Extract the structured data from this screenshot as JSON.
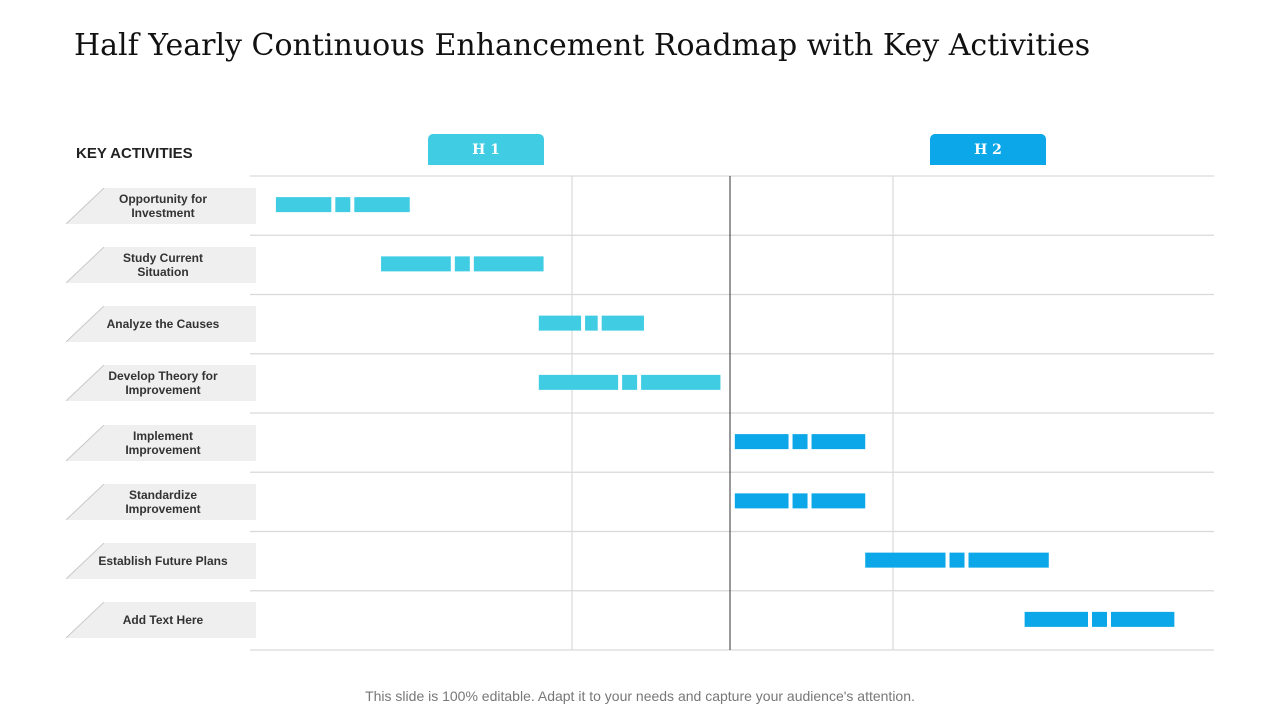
{
  "title": "Half Yearly Continuous Enhancement Roadmap with Key Activities",
  "key_activities_heading": "KEY ACTIVITIES",
  "halves": [
    {
      "label": "H 1",
      "color": "#40CCE3"
    },
    {
      "label": "H 2",
      "color": "#0BA7E8"
    }
  ],
  "activities": [
    "Opportunity for Investment",
    "Study Current Situation",
    "Analyze the Causes",
    "Develop Theory for Improvement",
    "Implement Improvement",
    "Standardize Improvement",
    "Establish Future Plans",
    "Add Text Here"
  ],
  "footer": "This slide is 100% editable. Adapt it to your needs and capture your audience's attention.",
  "chart_data": {
    "type": "gantt",
    "periods": [
      "H 1",
      "H 2"
    ],
    "unit": "half-year fraction (0 = start of H 1, 1 = end of H 1 / start of H 2, 2 = end of H 2)",
    "tasks": [
      {
        "activity": "Opportunity for Investment",
        "start": 0.05,
        "end": 0.33,
        "color": "#40CCE3"
      },
      {
        "activity": "Study Current Situation",
        "start": 0.27,
        "end": 0.61,
        "color": "#40CCE3"
      },
      {
        "activity": "Analyze the Causes",
        "start": 0.6,
        "end": 0.82,
        "color": "#40CCE3"
      },
      {
        "activity": "Develop Theory for Improvement",
        "start": 0.6,
        "end": 0.98,
        "color": "#40CCE3"
      },
      {
        "activity": "Implement Improvement",
        "start": 1.01,
        "end": 1.28,
        "color": "#0BA7E8"
      },
      {
        "activity": "Standardize Improvement",
        "start": 1.01,
        "end": 1.28,
        "color": "#0BA7E8"
      },
      {
        "activity": "Establish Future Plans",
        "start": 1.28,
        "end": 1.66,
        "color": "#0BA7E8"
      },
      {
        "activity": "Add Text Here",
        "start": 1.61,
        "end": 1.92,
        "color": "#0BA7E8"
      }
    ]
  }
}
